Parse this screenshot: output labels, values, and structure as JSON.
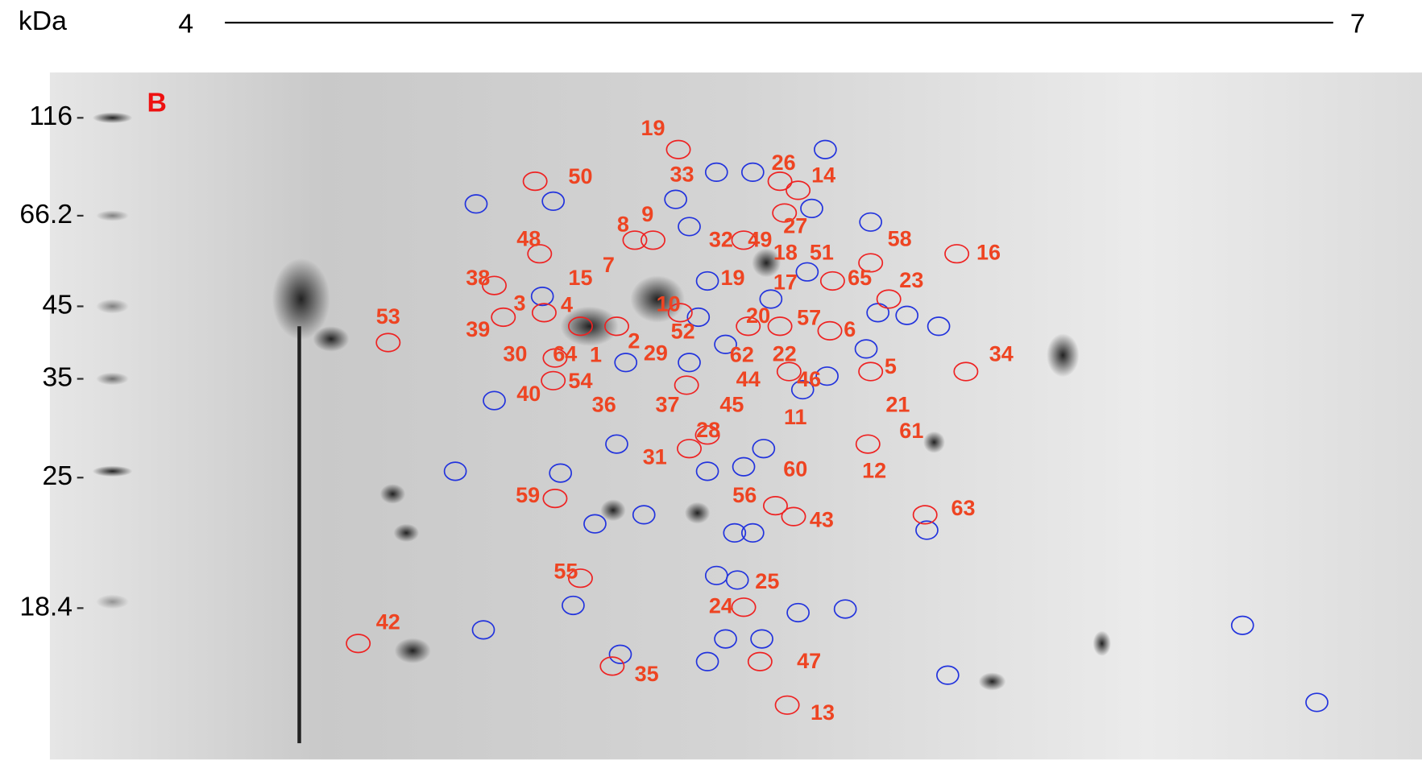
{
  "header": {
    "unit": "kDa",
    "ph_start": "4",
    "ph_end": "7"
  },
  "panel_label": "B",
  "markers": [
    "116",
    "66.2",
    "45",
    "35",
    "25",
    "18.4"
  ],
  "spots": [
    "19",
    "50",
    "33",
    "26",
    "14",
    "8",
    "9",
    "27",
    "32",
    "49",
    "18",
    "51",
    "58",
    "16",
    "48",
    "38",
    "15",
    "7",
    "19",
    "17",
    "65",
    "23",
    "3",
    "4",
    "10",
    "20",
    "57",
    "53",
    "39",
    "52",
    "6",
    "2",
    "30",
    "64",
    "1",
    "29",
    "62",
    "22",
    "5",
    "34",
    "40",
    "54",
    "36",
    "37",
    "44",
    "46",
    "45",
    "21",
    "11",
    "61",
    "28",
    "31",
    "12",
    "60",
    "59",
    "56",
    "43",
    "63",
    "55",
    "25",
    "24",
    "42",
    "47",
    "35",
    "13"
  ]
}
